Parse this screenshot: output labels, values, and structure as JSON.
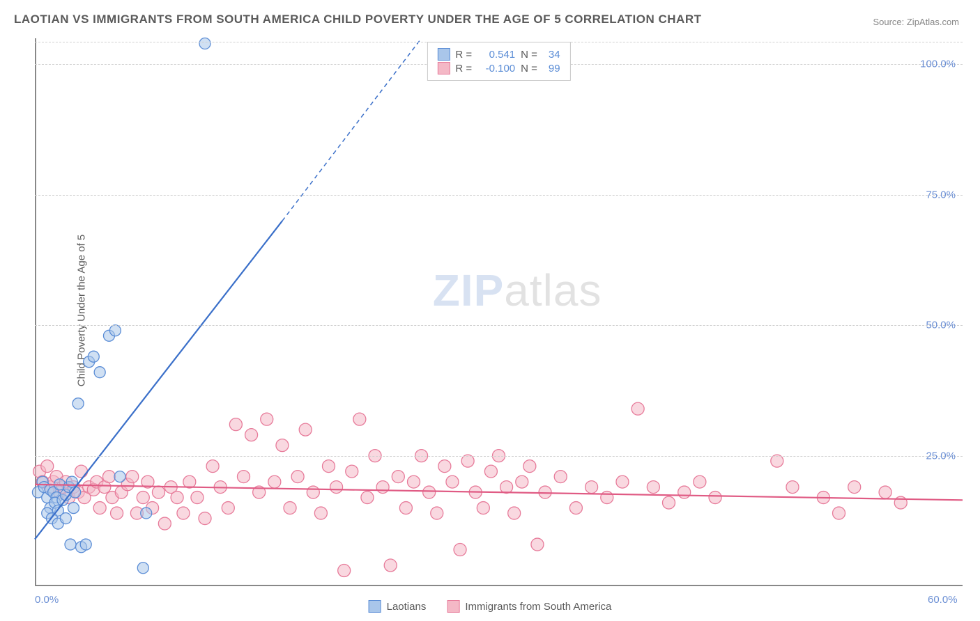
{
  "title": "LAOTIAN VS IMMIGRANTS FROM SOUTH AMERICA CHILD POVERTY UNDER THE AGE OF 5 CORRELATION CHART",
  "source": "Source: ZipAtlas.com",
  "y_axis_label": "Child Poverty Under the Age of 5",
  "watermark_a": "ZIP",
  "watermark_b": "atlas",
  "chart": {
    "type": "scatter",
    "xlim": [
      0,
      60
    ],
    "ylim": [
      0,
      105
    ],
    "x_ticks": [
      0,
      60
    ],
    "x_tick_labels": [
      "0.0%",
      "60.0%"
    ],
    "y_ticks": [
      25,
      50,
      75,
      100
    ],
    "y_tick_labels": [
      "25.0%",
      "50.0%",
      "75.0%",
      "100.0%"
    ],
    "grid_color": "#d0d0d0",
    "axis_color": "#888888",
    "background_color": "#ffffff",
    "series": [
      {
        "name": "Laotians",
        "fill": "#a9c6ea",
        "stroke": "#5b8dd6",
        "fill_opacity": 0.55,
        "marker_radius": 8,
        "r_value": "0.541",
        "n_value": "34",
        "trend": {
          "x1": 0,
          "y1": 9,
          "x2": 16,
          "y2": 70,
          "dash_x2": 25,
          "dash_y2": 105,
          "color": "#3a6fc9",
          "width": 2.2
        },
        "points": [
          [
            0.2,
            18
          ],
          [
            0.5,
            20
          ],
          [
            0.6,
            19
          ],
          [
            0.8,
            17
          ],
          [
            1.0,
            18.5
          ],
          [
            1.2,
            18
          ],
          [
            1.4,
            17
          ],
          [
            1.6,
            19.5
          ],
          [
            1.0,
            15
          ],
          [
            1.3,
            16
          ],
          [
            1.5,
            14.5
          ],
          [
            1.8,
            16.5
          ],
          [
            2.0,
            17.5
          ],
          [
            2.2,
            19
          ],
          [
            2.4,
            20
          ],
          [
            2.6,
            18
          ],
          [
            0.8,
            14
          ],
          [
            1.1,
            13
          ],
          [
            1.5,
            12
          ],
          [
            2.0,
            13
          ],
          [
            2.3,
            8
          ],
          [
            3.0,
            7.5
          ],
          [
            3.3,
            8
          ],
          [
            5.5,
            21
          ],
          [
            7.0,
            3.5
          ],
          [
            7.2,
            14
          ],
          [
            2.8,
            35
          ],
          [
            3.5,
            43
          ],
          [
            3.8,
            44
          ],
          [
            4.2,
            41
          ],
          [
            4.8,
            48
          ],
          [
            5.2,
            49
          ],
          [
            2.5,
            15
          ],
          [
            11.0,
            104
          ]
        ]
      },
      {
        "name": "Immigrants from South America",
        "fill": "#f4b8c6",
        "stroke": "#e77b9a",
        "fill_opacity": 0.55,
        "marker_radius": 9,
        "r_value": "-0.100",
        "n_value": "99",
        "trend": {
          "x1": 0,
          "y1": 19.5,
          "x2": 60,
          "y2": 16.5,
          "color": "#e05b84",
          "width": 2.2
        },
        "points": [
          [
            0.3,
            22
          ],
          [
            0.5,
            20
          ],
          [
            0.8,
            23
          ],
          [
            1.0,
            19
          ],
          [
            1.2,
            20
          ],
          [
            1.4,
            21
          ],
          [
            1.6,
            18
          ],
          [
            1.8,
            19
          ],
          [
            2.0,
            20
          ],
          [
            2.2,
            17
          ],
          [
            2.5,
            19
          ],
          [
            2.8,
            18
          ],
          [
            3.0,
            22
          ],
          [
            3.2,
            17
          ],
          [
            3.5,
            19
          ],
          [
            3.8,
            18.5
          ],
          [
            4.0,
            20
          ],
          [
            4.2,
            15
          ],
          [
            4.5,
            19
          ],
          [
            4.8,
            21
          ],
          [
            5.0,
            17
          ],
          [
            5.3,
            14
          ],
          [
            5.6,
            18
          ],
          [
            6.0,
            19.5
          ],
          [
            6.3,
            21
          ],
          [
            6.6,
            14
          ],
          [
            7.0,
            17
          ],
          [
            7.3,
            20
          ],
          [
            7.6,
            15
          ],
          [
            8.0,
            18
          ],
          [
            8.4,
            12
          ],
          [
            8.8,
            19
          ],
          [
            9.2,
            17
          ],
          [
            9.6,
            14
          ],
          [
            10.0,
            20
          ],
          [
            10.5,
            17
          ],
          [
            11.0,
            13
          ],
          [
            11.5,
            23
          ],
          [
            12.0,
            19
          ],
          [
            12.5,
            15
          ],
          [
            13.0,
            31
          ],
          [
            13.5,
            21
          ],
          [
            14.0,
            29
          ],
          [
            14.5,
            18
          ],
          [
            15.0,
            32
          ],
          [
            15.5,
            20
          ],
          [
            16.0,
            27
          ],
          [
            16.5,
            15
          ],
          [
            17.0,
            21
          ],
          [
            17.5,
            30
          ],
          [
            18.0,
            18
          ],
          [
            18.5,
            14
          ],
          [
            19.0,
            23
          ],
          [
            19.5,
            19
          ],
          [
            20.0,
            3
          ],
          [
            20.5,
            22
          ],
          [
            21.0,
            32
          ],
          [
            21.5,
            17
          ],
          [
            22.0,
            25
          ],
          [
            22.5,
            19
          ],
          [
            23.0,
            4
          ],
          [
            23.5,
            21
          ],
          [
            24.0,
            15
          ],
          [
            24.5,
            20
          ],
          [
            25.0,
            25
          ],
          [
            25.5,
            18
          ],
          [
            26.0,
            14
          ],
          [
            26.5,
            23
          ],
          [
            27.0,
            20
          ],
          [
            27.5,
            7
          ],
          [
            28.0,
            24
          ],
          [
            28.5,
            18
          ],
          [
            29.0,
            15
          ],
          [
            29.5,
            22
          ],
          [
            30.0,
            25
          ],
          [
            30.5,
            19
          ],
          [
            31.0,
            14
          ],
          [
            31.5,
            20
          ],
          [
            32.0,
            23
          ],
          [
            32.5,
            8
          ],
          [
            33.0,
            18
          ],
          [
            34.0,
            21
          ],
          [
            35.0,
            15
          ],
          [
            36.0,
            19
          ],
          [
            37.0,
            17
          ],
          [
            38.0,
            20
          ],
          [
            39.0,
            34
          ],
          [
            40.0,
            19
          ],
          [
            41.0,
            16
          ],
          [
            42.0,
            18
          ],
          [
            43.0,
            20
          ],
          [
            44.0,
            17
          ],
          [
            48.0,
            24
          ],
          [
            49.0,
            19
          ],
          [
            51.0,
            17
          ],
          [
            52.0,
            14
          ],
          [
            53.0,
            19
          ],
          [
            55.0,
            18
          ],
          [
            56.0,
            16
          ]
        ]
      }
    ]
  },
  "stats_labels": {
    "r": "R =",
    "n": "N ="
  },
  "legend": {
    "series1": "Laotians",
    "series2": "Immigrants from South America"
  }
}
